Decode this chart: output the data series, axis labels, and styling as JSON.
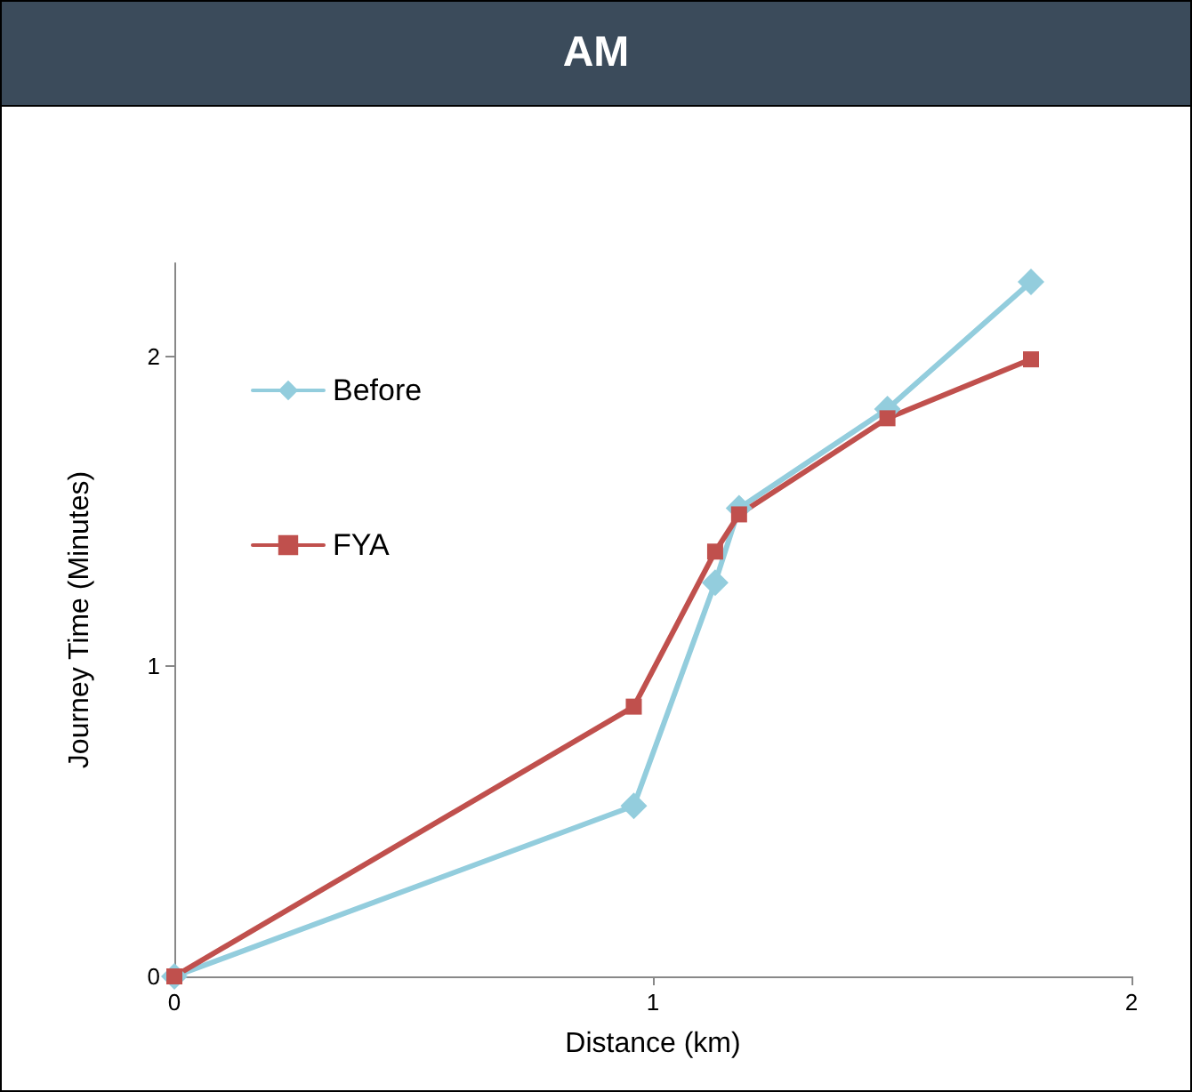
{
  "chart_data": {
    "type": "line",
    "title": "AM",
    "xlabel": "Distance (km)",
    "ylabel": "Journey Time (Minutes)",
    "xlim": [
      0,
      2
    ],
    "xticks": [
      0,
      1,
      2
    ],
    "ylim": [
      0,
      2.3
    ],
    "yticks": [
      0,
      1,
      2
    ],
    "grid": false,
    "legend": "left",
    "line_style": "solid",
    "series": [
      {
        "name": "Before",
        "color": "#93cddd",
        "marker": "diamond",
        "x": [
          0,
          0.96,
          1.13,
          1.18,
          1.49,
          1.79
        ],
        "values": [
          0,
          0.55,
          1.27,
          1.51,
          1.83,
          2.24
        ]
      },
      {
        "name": "FYA",
        "color": "#c0504d",
        "marker": "square",
        "x": [
          0,
          0.96,
          1.13,
          1.18,
          1.49,
          1.79
        ],
        "values": [
          0,
          0.87,
          1.37,
          1.49,
          1.8,
          1.99
        ]
      }
    ]
  }
}
